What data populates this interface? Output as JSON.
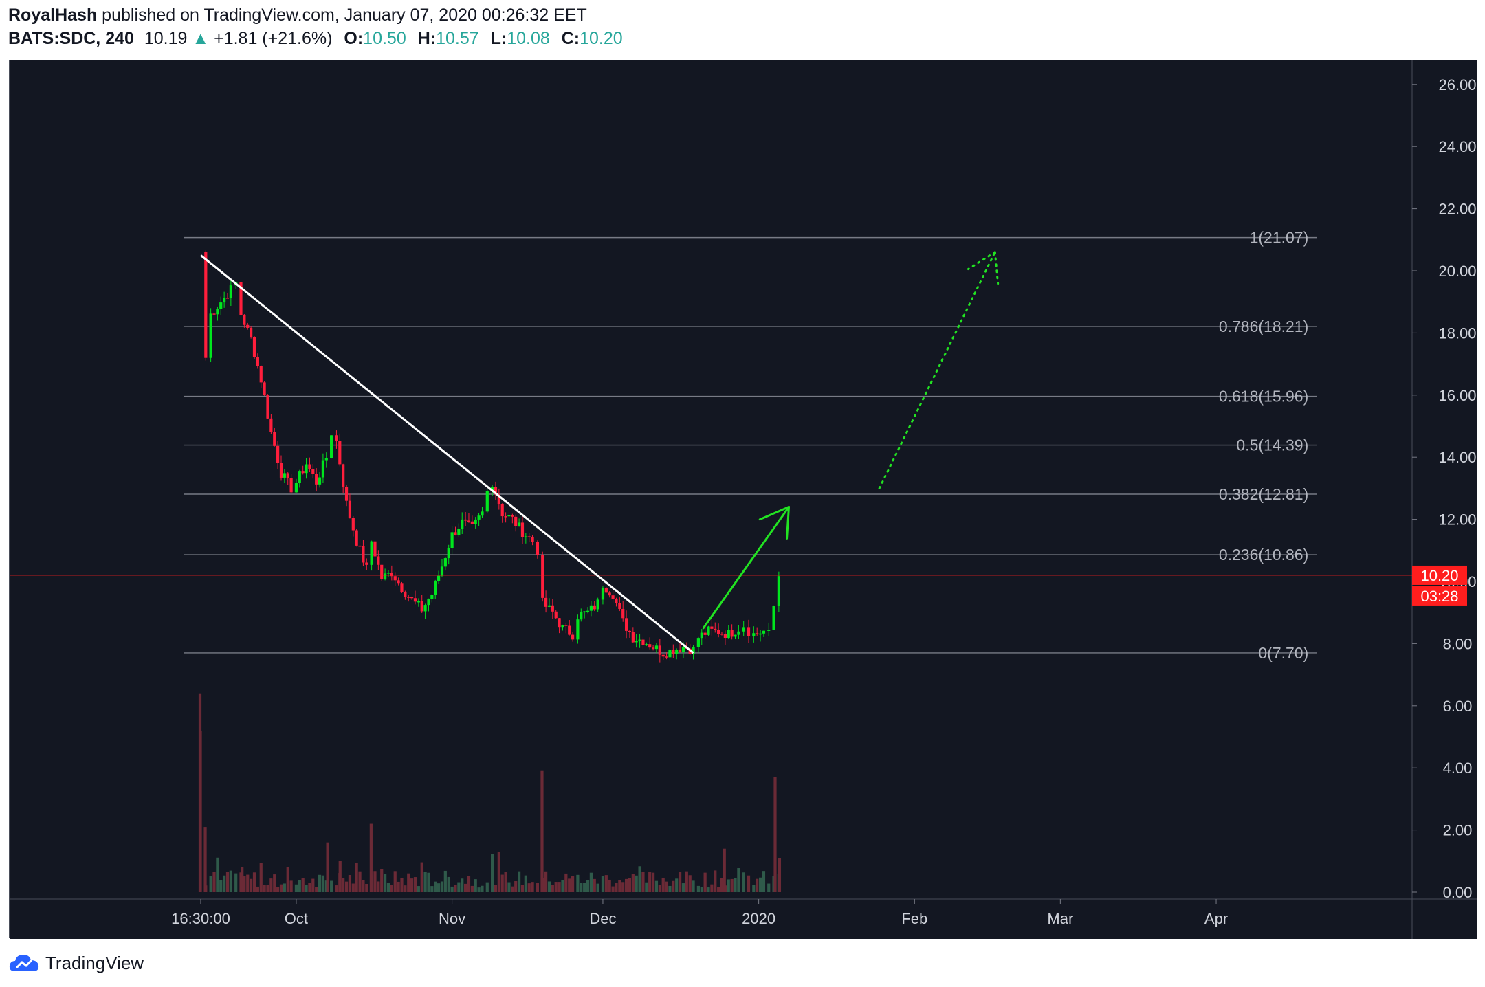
{
  "header": {
    "author": "RoyalHash",
    "published_text": "published on TradingView.com, January 07, 2020 00:26:32 EET",
    "symbol": "BATS:SDC, 240",
    "last": "10.19",
    "change": "+1.81 (+21.6%)",
    "open_label": "O:",
    "open": "10.50",
    "high_label": "H:",
    "high": "10.57",
    "low_label": "L:",
    "low": "10.08",
    "close_label": "C:",
    "close": "10.20"
  },
  "footer": {
    "brand": "TradingView",
    "logo_icon": "tradingview-cloud-icon"
  },
  "colors": {
    "background": "#131722",
    "up": "#00e61e",
    "down": "#ff1e3c",
    "vol_up": "#2f5a4a",
    "vol_down": "#6b2a36",
    "fib": "#787b86",
    "trendline": "#ffffff",
    "arrow": "#22e322",
    "price_label": "#ff1e1e"
  },
  "chart_data": {
    "type": "candlestick",
    "symbol": "BATS:SDC",
    "interval": "240",
    "y_axis": {
      "ticks": [
        "0.00",
        "2.00",
        "4.00",
        "6.00",
        "8.00",
        "10.00",
        "12.00",
        "14.00",
        "16.00",
        "18.00",
        "20.00",
        "22.00",
        "24.00",
        "26.00"
      ],
      "range": [
        0,
        26.6
      ]
    },
    "x_axis": {
      "ticks": [
        {
          "label": "16:30:00",
          "date": "2019-09-12"
        },
        {
          "label": "Oct",
          "date": "2019-10-01"
        },
        {
          "label": "Nov",
          "date": "2019-11-01"
        },
        {
          "label": "Dec",
          "date": "2019-12-01"
        },
        {
          "label": "2020",
          "date": "2020-01-01"
        },
        {
          "label": "Feb",
          "date": "2020-02-01"
        },
        {
          "label": "Mar",
          "date": "2020-03-01"
        },
        {
          "label": "Apr",
          "date": "2020-04-01"
        }
      ]
    },
    "current_price": {
      "value": "10.20",
      "countdown": "03:28"
    },
    "fib_levels": [
      {
        "label": "1(21.07)",
        "ratio": 1,
        "price": 21.07
      },
      {
        "label": "0.786(18.21)",
        "ratio": 0.786,
        "price": 18.21
      },
      {
        "label": "0.618(15.96)",
        "ratio": 0.618,
        "price": 15.96
      },
      {
        "label": "0.5(14.39)",
        "ratio": 0.5,
        "price": 14.39
      },
      {
        "label": "0.382(12.81)",
        "ratio": 0.382,
        "price": 12.81
      },
      {
        "label": "0.236(10.86)",
        "ratio": 0.236,
        "price": 10.86
      },
      {
        "label": "0(7.70)",
        "ratio": 0,
        "price": 7.7
      }
    ],
    "fib_range": [
      "2019-09-12",
      "2020-04-21"
    ],
    "close_path": [
      [
        "2019-09-12",
        20.6
      ],
      [
        "2019-09-13",
        17.2
      ],
      [
        "2019-09-14",
        18.6
      ],
      [
        "2019-09-16",
        19.0
      ],
      [
        "2019-09-18",
        19.4
      ],
      [
        "2019-09-19",
        19.6
      ],
      [
        "2019-09-20",
        18.6
      ],
      [
        "2019-09-22",
        17.8
      ],
      [
        "2019-09-24",
        16.5
      ],
      [
        "2019-09-26",
        14.8
      ],
      [
        "2019-09-28",
        13.5
      ],
      [
        "2019-09-30",
        13.0
      ],
      [
        "2019-10-01",
        13.2
      ],
      [
        "2019-10-03",
        13.8
      ],
      [
        "2019-10-05",
        13.2
      ],
      [
        "2019-10-07",
        14.0
      ],
      [
        "2019-10-08",
        14.8
      ],
      [
        "2019-10-09",
        14.5
      ],
      [
        "2019-10-11",
        12.5
      ],
      [
        "2019-10-13",
        11.3
      ],
      [
        "2019-10-15",
        10.4
      ],
      [
        "2019-10-16",
        11.3
      ],
      [
        "2019-10-18",
        10.1
      ],
      [
        "2019-10-20",
        10.3
      ],
      [
        "2019-10-22",
        9.8
      ],
      [
        "2019-10-24",
        9.4
      ],
      [
        "2019-10-26",
        9.1
      ],
      [
        "2019-10-28",
        9.6
      ],
      [
        "2019-10-30",
        10.5
      ],
      [
        "2019-11-01",
        11.5
      ],
      [
        "2019-11-03",
        11.9
      ],
      [
        "2019-11-05",
        11.7
      ],
      [
        "2019-11-07",
        12.2
      ],
      [
        "2019-11-08",
        12.9
      ],
      [
        "2019-11-09",
        13.2
      ],
      [
        "2019-11-11",
        12.2
      ],
      [
        "2019-11-13",
        12.0
      ],
      [
        "2019-11-15",
        11.6
      ],
      [
        "2019-11-17",
        11.3
      ],
      [
        "2019-11-18",
        11.0
      ],
      [
        "2019-11-19",
        9.3
      ],
      [
        "2019-11-21",
        9.0
      ],
      [
        "2019-11-23",
        8.5
      ],
      [
        "2019-11-25",
        8.3
      ],
      [
        "2019-11-26",
        8.9
      ],
      [
        "2019-11-28",
        9.0
      ],
      [
        "2019-11-30",
        9.3
      ],
      [
        "2019-12-01",
        9.9
      ],
      [
        "2019-12-03",
        9.6
      ],
      [
        "2019-12-05",
        8.7
      ],
      [
        "2019-12-07",
        8.2
      ],
      [
        "2019-12-09",
        8.1
      ],
      [
        "2019-12-11",
        7.9
      ],
      [
        "2019-12-13",
        7.7
      ],
      [
        "2019-12-15",
        7.8
      ],
      [
        "2019-12-17",
        7.9
      ],
      [
        "2019-12-19",
        7.8
      ],
      [
        "2019-12-20",
        8.2
      ],
      [
        "2019-12-22",
        8.4
      ],
      [
        "2019-12-24",
        8.4
      ],
      [
        "2019-12-26",
        8.3
      ],
      [
        "2019-12-28",
        8.5
      ],
      [
        "2019-12-29",
        8.6
      ],
      [
        "2019-12-30",
        8.4
      ],
      [
        "2019-12-31",
        8.3
      ],
      [
        "2020-01-02",
        8.4
      ],
      [
        "2020-01-03",
        8.3
      ],
      [
        "2020-01-04",
        9.2
      ],
      [
        "2020-01-05",
        10.2
      ]
    ],
    "volume_spikes": [
      [
        "2019-09-12",
        5.2
      ],
      [
        "2019-09-12",
        6.4
      ],
      [
        "2019-09-13",
        2.1
      ],
      [
        "2019-09-20",
        0.8
      ],
      [
        "2019-10-07",
        1.6
      ],
      [
        "2019-10-10",
        1.0
      ],
      [
        "2019-10-16",
        2.2
      ],
      [
        "2019-11-19",
        3.9
      ],
      [
        "2019-12-25",
        1.4
      ],
      [
        "2020-01-04",
        3.7
      ],
      [
        "2020-01-05",
        1.1
      ]
    ],
    "annotations": [
      {
        "type": "trendline",
        "from": [
          "2019-09-12",
          20.5
        ],
        "to": [
          "2019-12-19",
          7.7
        ]
      },
      {
        "type": "arrow",
        "style": "solid",
        "from": [
          "2019-12-21",
          8.5
        ],
        "to": [
          "2020-01-07",
          12.4
        ]
      },
      {
        "type": "arrow",
        "style": "dotted",
        "from": [
          "2020-01-25",
          13.0
        ],
        "to": [
          "2020-02-17",
          20.6
        ]
      }
    ]
  }
}
